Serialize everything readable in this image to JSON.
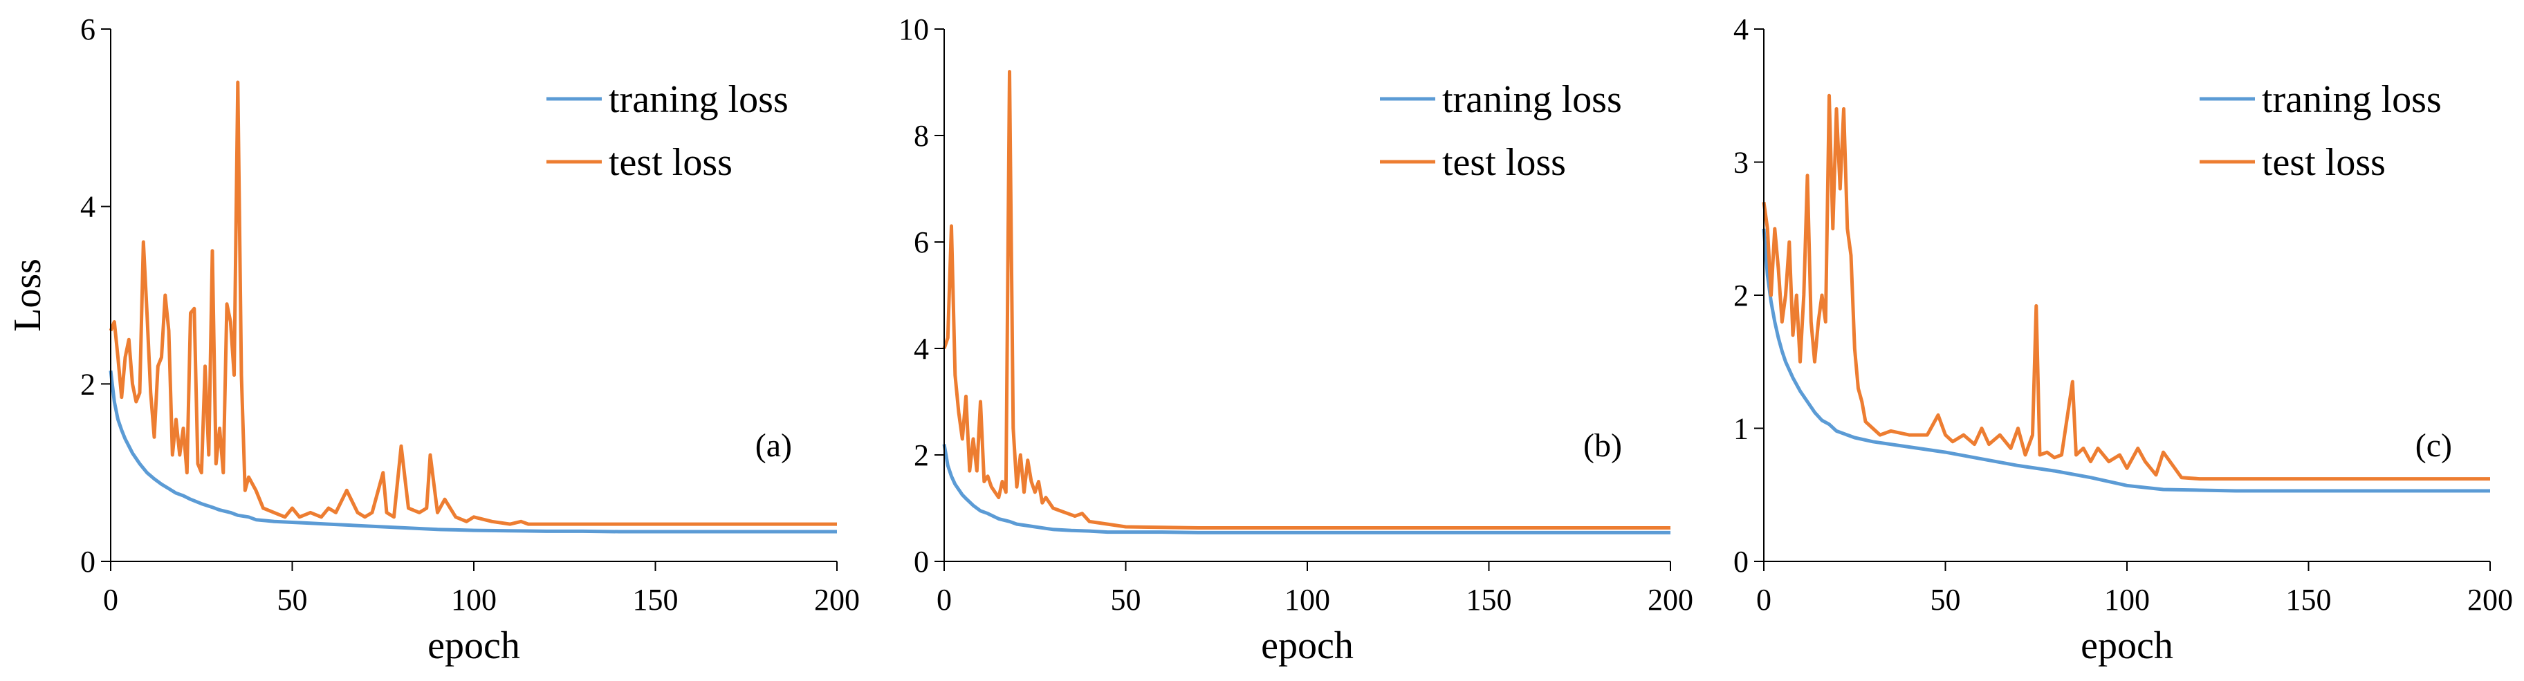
{
  "colors": {
    "training": "#5B9BD5",
    "test": "#ED7D31",
    "axis": "#000000"
  },
  "chart_data": [
    {
      "type": "line",
      "panel_label": "(a)",
      "xlabel": "epoch",
      "ylabel": "Loss",
      "xlim": [
        0,
        200
      ],
      "ylim": [
        0,
        6
      ],
      "xticks": [
        0,
        50,
        100,
        150,
        200
      ],
      "yticks": [
        0,
        2,
        4,
        6
      ],
      "legend": [
        "traning loss",
        "test loss"
      ],
      "series": [
        {
          "name": "traning loss",
          "x": [
            0,
            1,
            2,
            3,
            4,
            5,
            6,
            8,
            10,
            12,
            14,
            16,
            18,
            20,
            22,
            25,
            28,
            30,
            33,
            35,
            38,
            40,
            45,
            50,
            55,
            60,
            65,
            70,
            75,
            80,
            85,
            90,
            95,
            100,
            110,
            120,
            130,
            140,
            150,
            160,
            170,
            180,
            190,
            200
          ],
          "values": [
            2.15,
            1.8,
            1.6,
            1.48,
            1.38,
            1.3,
            1.22,
            1.1,
            1.0,
            0.93,
            0.87,
            0.82,
            0.77,
            0.74,
            0.7,
            0.65,
            0.61,
            0.58,
            0.55,
            0.52,
            0.5,
            0.47,
            0.45,
            0.44,
            0.43,
            0.42,
            0.41,
            0.4,
            0.39,
            0.38,
            0.37,
            0.36,
            0.355,
            0.35,
            0.345,
            0.34,
            0.34,
            0.335,
            0.335,
            0.335,
            0.335,
            0.335,
            0.335,
            0.335
          ]
        },
        {
          "name": "test loss",
          "x": [
            0,
            1,
            2,
            3,
            4,
            5,
            6,
            7,
            8,
            9,
            10,
            11,
            12,
            13,
            14,
            15,
            16,
            17,
            18,
            19,
            20,
            21,
            22,
            23,
            24,
            25,
            26,
            27,
            28,
            29,
            30,
            31,
            32,
            33,
            34,
            35,
            36,
            37,
            38,
            40,
            42,
            45,
            48,
            50,
            52,
            55,
            58,
            60,
            62,
            65,
            68,
            70,
            72,
            75,
            76,
            78,
            80,
            82,
            85,
            87,
            88,
            90,
            92,
            95,
            98,
            100,
            105,
            110,
            113,
            115,
            120,
            130,
            140,
            150,
            160,
            170,
            180,
            190,
            200
          ],
          "values": [
            2.6,
            2.7,
            2.3,
            1.85,
            2.3,
            2.5,
            2.0,
            1.8,
            1.9,
            3.6,
            2.8,
            1.9,
            1.4,
            2.2,
            2.3,
            3.0,
            2.6,
            1.2,
            1.6,
            1.2,
            1.5,
            1.0,
            2.8,
            2.85,
            1.1,
            1.0,
            2.2,
            1.2,
            3.5,
            1.1,
            1.5,
            1.0,
            2.9,
            2.7,
            2.1,
            5.4,
            2.1,
            0.8,
            0.95,
            0.8,
            0.6,
            0.55,
            0.5,
            0.6,
            0.5,
            0.55,
            0.5,
            0.6,
            0.55,
            0.8,
            0.55,
            0.5,
            0.55,
            1.0,
            0.55,
            0.5,
            1.3,
            0.6,
            0.55,
            0.6,
            1.2,
            0.55,
            0.7,
            0.5,
            0.45,
            0.5,
            0.45,
            0.42,
            0.45,
            0.42,
            0.42,
            0.42,
            0.42,
            0.42,
            0.42,
            0.42,
            0.42,
            0.42,
            0.42
          ]
        }
      ]
    },
    {
      "type": "line",
      "panel_label": "(b)",
      "xlabel": "epoch",
      "ylabel": "",
      "xlim": [
        0,
        200
      ],
      "ylim": [
        0,
        10
      ],
      "xticks": [
        0,
        50,
        100,
        150,
        200
      ],
      "yticks": [
        0,
        2,
        4,
        6,
        8,
        10
      ],
      "legend": [
        "traning loss",
        "test loss"
      ],
      "series": [
        {
          "name": "traning loss",
          "x": [
            0,
            1,
            2,
            3,
            4,
            5,
            6,
            8,
            10,
            12,
            15,
            18,
            20,
            22,
            25,
            28,
            30,
            35,
            40,
            45,
            50,
            60,
            70,
            80,
            90,
            100,
            120,
            140,
            160,
            180,
            200
          ],
          "values": [
            2.2,
            1.8,
            1.6,
            1.45,
            1.35,
            1.25,
            1.18,
            1.05,
            0.95,
            0.9,
            0.8,
            0.75,
            0.7,
            0.68,
            0.65,
            0.62,
            0.6,
            0.58,
            0.57,
            0.55,
            0.55,
            0.55,
            0.54,
            0.54,
            0.54,
            0.54,
            0.54,
            0.54,
            0.54,
            0.54,
            0.54
          ]
        },
        {
          "name": "test loss",
          "x": [
            0,
            1,
            2,
            3,
            4,
            5,
            6,
            7,
            8,
            9,
            10,
            11,
            12,
            13,
            14,
            15,
            16,
            17,
            18,
            19,
            20,
            21,
            22,
            23,
            24,
            25,
            26,
            27,
            28,
            30,
            32,
            34,
            36,
            38,
            40,
            45,
            50,
            60,
            70,
            80,
            90,
            100,
            120,
            140,
            160,
            180,
            200
          ],
          "values": [
            4.0,
            4.2,
            6.3,
            3.5,
            2.8,
            2.3,
            3.1,
            1.7,
            2.3,
            1.7,
            3.0,
            1.5,
            1.6,
            1.4,
            1.3,
            1.2,
            1.5,
            1.3,
            9.2,
            2.5,
            1.4,
            2.0,
            1.3,
            1.9,
            1.5,
            1.3,
            1.5,
            1.1,
            1.2,
            1.0,
            0.95,
            0.9,
            0.85,
            0.9,
            0.75,
            0.7,
            0.65,
            0.64,
            0.63,
            0.63,
            0.63,
            0.63,
            0.63,
            0.63,
            0.63,
            0.63,
            0.63
          ]
        }
      ]
    },
    {
      "type": "line",
      "panel_label": "(c)",
      "xlabel": "epoch",
      "ylabel": "",
      "xlim": [
        0,
        200
      ],
      "ylim": [
        0,
        4
      ],
      "xticks": [
        0,
        50,
        100,
        150,
        200
      ],
      "yticks": [
        0,
        1,
        2,
        3,
        4
      ],
      "legend": [
        "traning loss",
        "test loss"
      ],
      "series": [
        {
          "name": "traning loss",
          "x": [
            0,
            1,
            2,
            3,
            4,
            5,
            6,
            8,
            10,
            12,
            14,
            16,
            18,
            20,
            25,
            30,
            40,
            50,
            60,
            70,
            80,
            90,
            100,
            110,
            120,
            130,
            140,
            150,
            160,
            170,
            180,
            190,
            200
          ],
          "values": [
            2.5,
            2.15,
            1.95,
            1.8,
            1.68,
            1.58,
            1.5,
            1.38,
            1.28,
            1.2,
            1.12,
            1.06,
            1.03,
            0.98,
            0.93,
            0.9,
            0.86,
            0.82,
            0.77,
            0.72,
            0.68,
            0.63,
            0.57,
            0.54,
            0.535,
            0.53,
            0.53,
            0.53,
            0.53,
            0.53,
            0.53,
            0.53,
            0.53
          ]
        },
        {
          "name": "test loss",
          "x": [
            0,
            1,
            2,
            3,
            4,
            5,
            6,
            7,
            8,
            9,
            10,
            11,
            12,
            13,
            14,
            15,
            16,
            17,
            18,
            19,
            20,
            21,
            22,
            23,
            24,
            25,
            26,
            27,
            28,
            30,
            32,
            35,
            40,
            45,
            48,
            50,
            52,
            55,
            58,
            60,
            62,
            65,
            68,
            70,
            72,
            74,
            75,
            76,
            78,
            80,
            82,
            85,
            86,
            88,
            90,
            92,
            95,
            98,
            100,
            103,
            105,
            108,
            110,
            115,
            120,
            130,
            140,
            150,
            160,
            170,
            180,
            190,
            200
          ],
          "values": [
            2.7,
            2.5,
            2.0,
            2.5,
            2.2,
            1.8,
            2.0,
            2.4,
            1.7,
            2.0,
            1.5,
            2.0,
            2.9,
            1.8,
            1.5,
            1.8,
            2.0,
            1.8,
            3.5,
            2.5,
            3.4,
            2.8,
            3.4,
            2.5,
            2.3,
            1.6,
            1.3,
            1.2,
            1.05,
            1.0,
            0.95,
            0.98,
            0.95,
            0.95,
            1.1,
            0.95,
            0.9,
            0.95,
            0.88,
            1.0,
            0.88,
            0.95,
            0.85,
            1.0,
            0.8,
            0.95,
            1.92,
            0.8,
            0.82,
            0.78,
            0.8,
            1.35,
            0.8,
            0.85,
            0.75,
            0.85,
            0.75,
            0.8,
            0.7,
            0.85,
            0.75,
            0.65,
            0.82,
            0.63,
            0.62,
            0.62,
            0.62,
            0.62,
            0.62,
            0.62,
            0.62,
            0.62,
            0.62
          ]
        }
      ]
    }
  ]
}
